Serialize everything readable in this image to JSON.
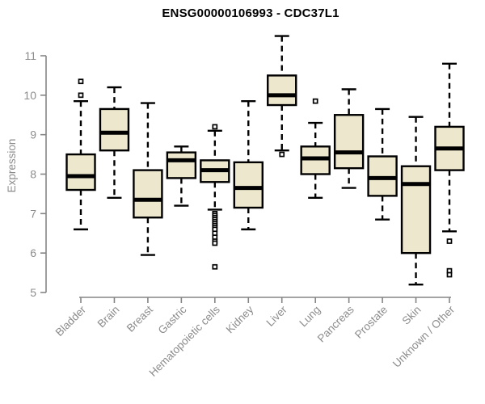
{
  "page": {
    "title": "ENSG00000106993 - CDC37L1"
  },
  "chart_data": {
    "type": "boxplot",
    "title": "ENSG00000106993 - CDC37L1",
    "xlabel": "",
    "ylabel": "Expression",
    "ylim": [
      5,
      11
    ],
    "yticks": [
      5,
      6,
      7,
      8,
      9,
      10,
      11
    ],
    "grid": false,
    "legend": "none",
    "categories": [
      "Bladder",
      "Brain",
      "Breast",
      "Gastric",
      "Hematopoietic cells",
      "Kidney",
      "Liver",
      "Lung",
      "Pancreas",
      "Prostate",
      "Skin",
      "Unknown / Other"
    ],
    "series": [
      {
        "name": "Bladder",
        "whisker_low": 6.6,
        "q1": 7.6,
        "median": 7.95,
        "q3": 8.5,
        "whisker_high": 9.85,
        "outliers": [
          10.0,
          10.35
        ]
      },
      {
        "name": "Brain",
        "whisker_low": 7.4,
        "q1": 8.6,
        "median": 9.05,
        "q3": 9.65,
        "whisker_high": 10.2,
        "outliers": []
      },
      {
        "name": "Breast",
        "whisker_low": 5.95,
        "q1": 6.9,
        "median": 7.35,
        "q3": 8.1,
        "whisker_high": 9.8,
        "outliers": []
      },
      {
        "name": "Gastric",
        "whisker_low": 7.2,
        "q1": 7.9,
        "median": 8.35,
        "q3": 8.55,
        "whisker_high": 8.7,
        "outliers": []
      },
      {
        "name": "Hematopoietic cells",
        "whisker_low": 7.1,
        "q1": 7.8,
        "median": 8.1,
        "q3": 8.35,
        "whisker_high": 9.1,
        "outliers": [
          9.2,
          7.0,
          6.95,
          6.9,
          6.85,
          6.8,
          6.75,
          6.7,
          6.65,
          6.6,
          6.5,
          6.4,
          6.3,
          6.25,
          5.65
        ]
      },
      {
        "name": "Kidney",
        "whisker_low": 6.6,
        "q1": 7.15,
        "median": 7.65,
        "q3": 8.3,
        "whisker_high": 9.85,
        "outliers": []
      },
      {
        "name": "Liver",
        "whisker_low": 8.6,
        "q1": 9.75,
        "median": 10.0,
        "q3": 10.5,
        "whisker_high": 11.5,
        "outliers": [
          8.5
        ]
      },
      {
        "name": "Lung",
        "whisker_low": 7.4,
        "q1": 8.0,
        "median": 8.4,
        "q3": 8.7,
        "whisker_high": 9.3,
        "outliers": [
          9.85
        ]
      },
      {
        "name": "Pancreas",
        "whisker_low": 7.65,
        "q1": 8.15,
        "median": 8.55,
        "q3": 9.5,
        "whisker_high": 10.15,
        "outliers": []
      },
      {
        "name": "Prostate",
        "whisker_low": 6.85,
        "q1": 7.45,
        "median": 7.9,
        "q3": 8.45,
        "whisker_high": 9.65,
        "outliers": []
      },
      {
        "name": "Skin",
        "whisker_low": 5.2,
        "q1": 6.0,
        "median": 7.75,
        "q3": 8.2,
        "whisker_high": 9.45,
        "outliers": []
      },
      {
        "name": "Unknown / Other",
        "whisker_low": 6.55,
        "q1": 8.1,
        "median": 8.65,
        "q3": 9.2,
        "whisker_high": 10.8,
        "outliers": [
          6.3,
          5.55,
          5.45
        ]
      }
    ],
    "colors": {
      "background": "#FFFFFF",
      "box_fill": "#EDE8CD",
      "box_border": "#000000",
      "median": "#000000",
      "whisker": "#000000",
      "outlier_stroke": "#000000",
      "outlier_fill": "#FFFFFF",
      "axis": "#858585",
      "tick_label": "#8C8C8C",
      "title": "#000000"
    }
  }
}
